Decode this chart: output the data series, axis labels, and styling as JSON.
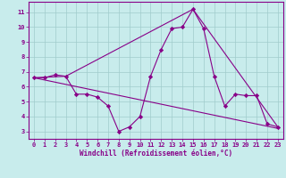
{
  "title": "",
  "xlabel": "Windchill (Refroidissement éolien,°C)",
  "background_color": "#c8ecec",
  "grid_color": "#b0d8d8",
  "line_color": "#880088",
  "xlim": [
    -0.5,
    23.5
  ],
  "ylim": [
    2.5,
    11.7
  ],
  "xticks": [
    0,
    1,
    2,
    3,
    4,
    5,
    6,
    7,
    8,
    9,
    10,
    11,
    12,
    13,
    14,
    15,
    16,
    17,
    18,
    19,
    20,
    21,
    22,
    23
  ],
  "yticks": [
    3,
    4,
    5,
    6,
    7,
    8,
    9,
    10,
    11
  ],
  "line1_x": [
    0,
    1,
    2,
    3,
    4,
    5,
    6,
    7,
    8,
    9,
    10,
    11,
    12,
    13,
    14,
    15,
    16,
    17,
    18,
    19,
    20,
    21,
    22,
    23
  ],
  "line1_y": [
    6.6,
    6.6,
    6.8,
    6.7,
    5.5,
    5.5,
    5.3,
    4.7,
    3.0,
    3.3,
    4.0,
    6.7,
    8.5,
    9.9,
    10.0,
    11.2,
    9.9,
    6.7,
    4.7,
    5.5,
    5.4,
    5.4,
    3.5,
    3.3
  ],
  "line2_x": [
    0,
    23
  ],
  "line2_y": [
    6.6,
    3.2
  ],
  "line3_x": [
    0,
    3,
    15,
    23
  ],
  "line3_y": [
    6.6,
    6.7,
    11.2,
    3.3
  ],
  "marker": "D",
  "markersize": 2.2,
  "linewidth": 0.8,
  "tick_fontsize": 5.0,
  "xlabel_fontsize": 5.5
}
